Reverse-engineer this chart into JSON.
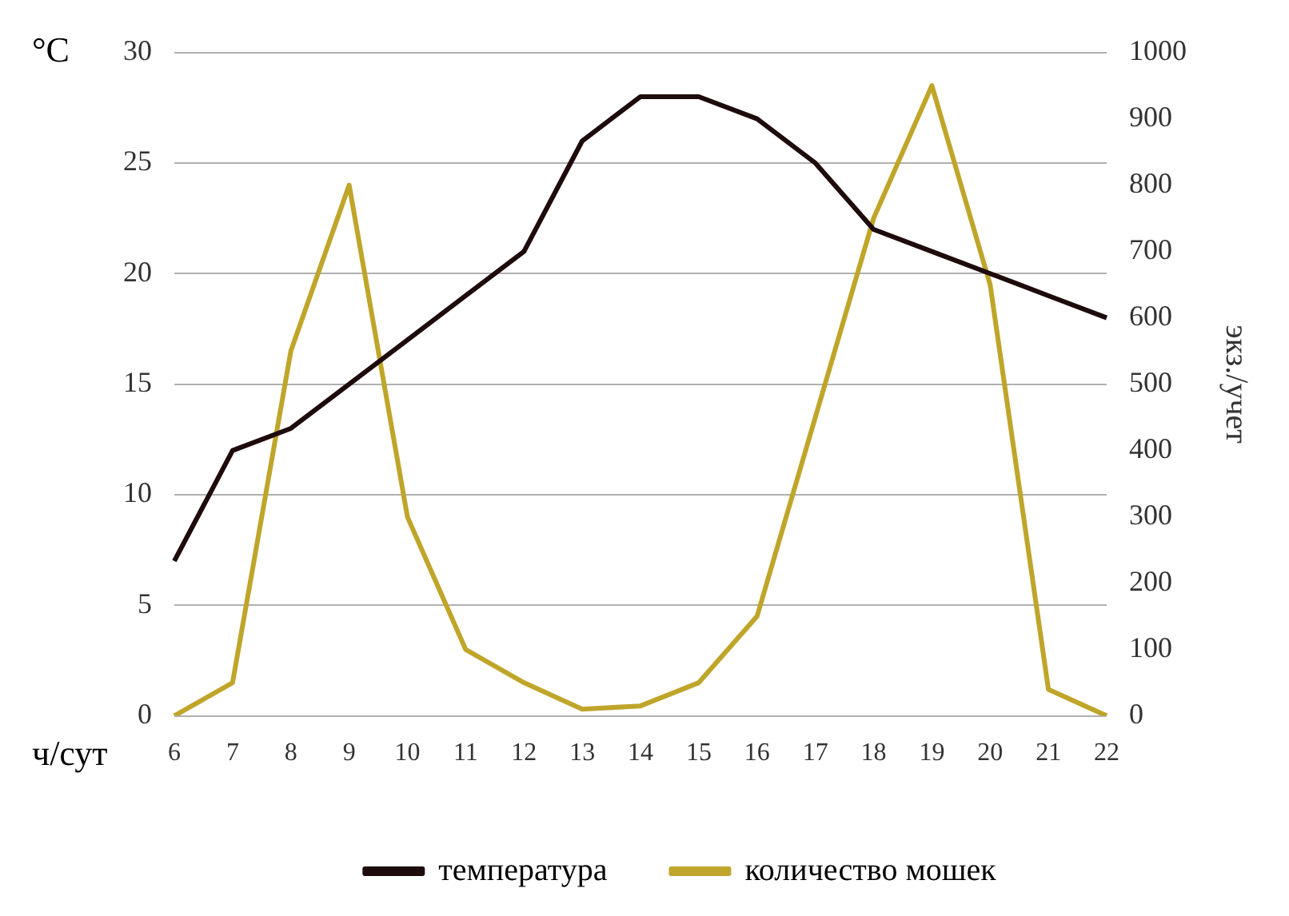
{
  "chart_data": {
    "type": "line",
    "ylabel": "°C",
    "y2label": "экз./учет",
    "xlabel": "ч/сут",
    "categories": [
      "6",
      "7",
      "8",
      "9",
      "10",
      "11",
      "12",
      "13",
      "14",
      "15",
      "16",
      "17",
      "18",
      "19",
      "20",
      "21",
      "22"
    ],
    "series": [
      {
        "name": "температура",
        "color": "#1e0b0b",
        "values": [
          7,
          12,
          13,
          15,
          17,
          19,
          21,
          26,
          28,
          28,
          27,
          25,
          22,
          21,
          20,
          19,
          18
        ]
      },
      {
        "name": "количество мошек",
        "color": "#bfa52a",
        "axis": "y2",
        "values": [
          0,
          50,
          550,
          800,
          300,
          100,
          50,
          10,
          15,
          50,
          150,
          450,
          750,
          950,
          650,
          40,
          0
        ]
      }
    ],
    "ylim": [
      0,
      30
    ],
    "yticks": [
      0,
      5,
      10,
      15,
      20,
      25,
      30
    ],
    "y2lim": [
      0,
      1000
    ],
    "y2ticks": [
      0,
      100,
      200,
      300,
      400,
      500,
      600,
      700,
      800,
      900,
      1000
    ],
    "grid": "y",
    "legend": "bottom",
    "marker": "none",
    "line_style": "solid"
  }
}
